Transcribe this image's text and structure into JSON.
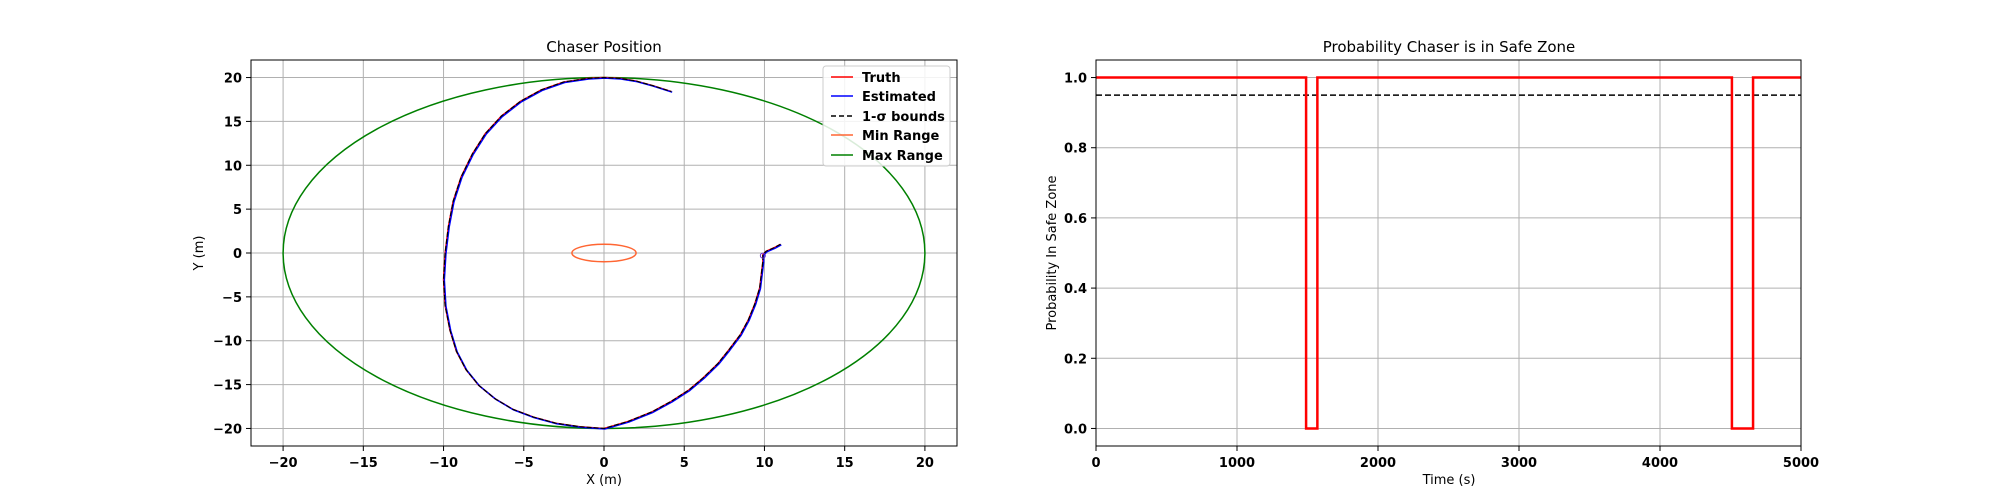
{
  "chart_data": [
    {
      "type": "line",
      "title": "Chaser Position",
      "xlabel": "X (m)",
      "ylabel": "Y (m)",
      "xlim": [
        -22,
        22
      ],
      "ylim": [
        -22,
        22
      ],
      "xticks": [
        -20,
        -15,
        -10,
        -5,
        0,
        5,
        10,
        15,
        20
      ],
      "yticks": [
        -20,
        -15,
        -10,
        -5,
        0,
        5,
        10,
        15,
        20
      ],
      "grid": true,
      "legend_position": "top-right",
      "series": [
        {
          "name": "Truth",
          "color": "#ff0000",
          "style": "solid"
        },
        {
          "name": "Estimated",
          "color": "#0000ff",
          "style": "solid"
        },
        {
          "name": "1-σ bounds",
          "color": "#000000",
          "style": "dashed"
        },
        {
          "name": "Min Range",
          "color": "#ff6633",
          "style": "solid",
          "shape": "ellipse",
          "center": [
            0,
            0
          ],
          "radius_x": 2,
          "radius_y": 1
        },
        {
          "name": "Max Range",
          "color": "#008000",
          "style": "solid",
          "shape": "ellipse",
          "center": [
            0,
            0
          ],
          "radius_x": 20,
          "radius_y": 20
        }
      ],
      "trajectory": {
        "x": [
          11,
          10.6,
          10.1,
          9.9,
          9.9,
          9.8,
          9.7,
          9.4,
          9.0,
          8.5,
          7.8,
          7.1,
          6.2,
          5.3,
          4.2,
          3.0,
          1.5,
          0,
          -1.5,
          -3.0,
          -4.4,
          -5.7,
          -6.8,
          -7.8,
          -8.6,
          -9.2,
          -9.6,
          -9.9,
          -10.0,
          -9.9,
          -9.7,
          -9.4,
          -8.9,
          -8.2,
          -7.4,
          -6.4,
          -5.2,
          -3.9,
          -2.5,
          -1.0,
          0,
          1.0,
          2.0,
          3.0,
          4.2
        ],
        "y": [
          1.0,
          0.6,
          0.2,
          -0.2,
          -1.0,
          -2.5,
          -4.0,
          -5.8,
          -7.6,
          -9.3,
          -11.0,
          -12.6,
          -14.2,
          -15.6,
          -16.9,
          -18.1,
          -19.2,
          -20.0,
          -19.8,
          -19.4,
          -18.7,
          -17.8,
          -16.6,
          -15.1,
          -13.3,
          -11.2,
          -8.8,
          -6.0,
          -3.0,
          0,
          3.0,
          5.9,
          8.7,
          11.3,
          13.6,
          15.6,
          17.3,
          18.6,
          19.5,
          19.9,
          20.0,
          19.9,
          19.6,
          19.1,
          18.4
        ]
      }
    },
    {
      "type": "line",
      "title": "Probability Chaser is in Safe Zone",
      "xlabel": "Time (s)",
      "ylabel": "Probability In Safe Zone",
      "xlim": [
        0,
        5000
      ],
      "ylim": [
        -0.05,
        1.05
      ],
      "xticks": [
        0,
        1000,
        2000,
        3000,
        4000,
        5000
      ],
      "yticks": [
        0.0,
        0.2,
        0.4,
        0.6,
        0.8,
        1.0
      ],
      "grid": true,
      "series": [
        {
          "color": "#ff0000",
          "style": "solid",
          "x": [
            0,
            1490,
            1490,
            1570,
            1570,
            4510,
            4510,
            4660,
            4660,
            5000
          ],
          "y": [
            1,
            1,
            0,
            0,
            1,
            1,
            0,
            0,
            1,
            1
          ]
        },
        {
          "color": "#000000",
          "style": "dashed",
          "x": [
            0,
            5000
          ],
          "y": [
            0.95,
            0.95
          ]
        }
      ]
    }
  ]
}
